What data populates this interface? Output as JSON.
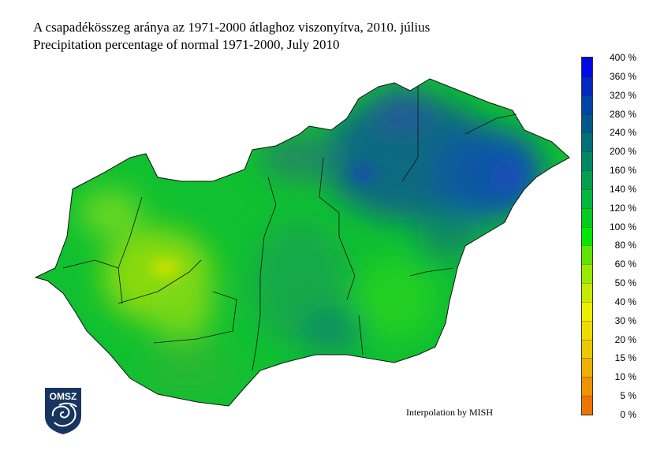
{
  "title_hu": "A csapadékösszeg aránya az 1971-2000 átlaghoz viszonyítva, 2010. július",
  "title_en": "Precipitation percentage of normal 1971-2000, July 2010",
  "credit": "Interpolation by MISH",
  "logo_text": "OMSZ",
  "legend": {
    "labels": [
      "0 %",
      "5 %",
      "10 %",
      "15 %",
      "20 %",
      "30 %",
      "40 %",
      "50 %",
      "60 %",
      "80 %",
      "100 %",
      "120 %",
      "140 %",
      "160 %",
      "200 %",
      "240 %",
      "280 %",
      "320 %",
      "360 %",
      "400 %"
    ],
    "colors": [
      "#ee7400",
      "#ee9400",
      "#eeb000",
      "#eec800",
      "#eedc00",
      "#eeee00",
      "#c4ea00",
      "#9aea00",
      "#60e400",
      "#00e800",
      "#00cc22",
      "#00b840",
      "#00a050",
      "#008866",
      "#007078",
      "#00588e",
      "#0044a6",
      "#0028c4",
      "#0008e8"
    ]
  }
}
